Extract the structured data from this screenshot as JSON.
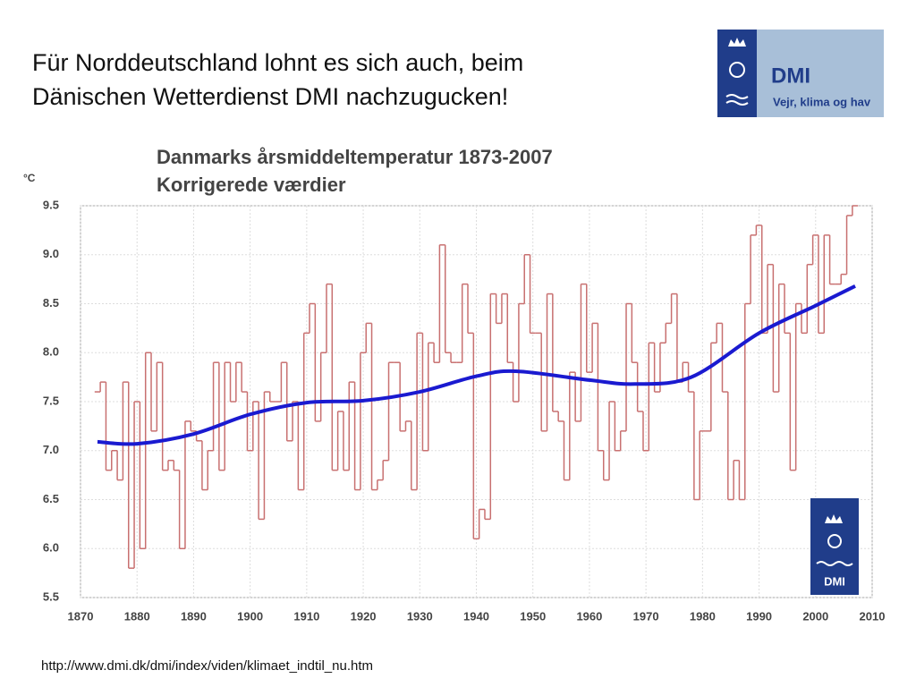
{
  "slide": {
    "title_lines": [
      "Für Norddeutschland lohnt es sich auch, beim",
      "Dänischen Wetterdienst DMI nachzugucken!"
    ],
    "url": "http://www.dmi.dk/dmi/index/viden/klimaet_indtil_nu.htm"
  },
  "logo": {
    "name": "DMI",
    "tagline": "Vejr, klima og hav",
    "small_name": "DMI"
  },
  "chart_data": {
    "type": "step",
    "title": "Danmarks årsmiddeltemperatur 1873-2007",
    "subtitle": "Korrigerede værdier",
    "y_label": "°C",
    "x": [
      1873,
      1874,
      1875,
      1876,
      1877,
      1878,
      1879,
      1880,
      1881,
      1882,
      1883,
      1884,
      1885,
      1886,
      1887,
      1888,
      1889,
      1890,
      1891,
      1892,
      1893,
      1894,
      1895,
      1896,
      1897,
      1898,
      1899,
      1900,
      1901,
      1902,
      1903,
      1904,
      1905,
      1906,
      1907,
      1908,
      1909,
      1910,
      1911,
      1912,
      1913,
      1914,
      1915,
      1916,
      1917,
      1918,
      1919,
      1920,
      1921,
      1922,
      1923,
      1924,
      1925,
      1926,
      1927,
      1928,
      1929,
      1930,
      1931,
      1932,
      1933,
      1934,
      1935,
      1936,
      1937,
      1938,
      1939,
      1940,
      1941,
      1942,
      1943,
      1944,
      1945,
      1946,
      1947,
      1948,
      1949,
      1950,
      1951,
      1952,
      1953,
      1954,
      1955,
      1956,
      1957,
      1958,
      1959,
      1960,
      1961,
      1962,
      1963,
      1964,
      1965,
      1966,
      1967,
      1968,
      1969,
      1970,
      1971,
      1972,
      1973,
      1974,
      1975,
      1976,
      1977,
      1978,
      1979,
      1980,
      1981,
      1982,
      1983,
      1984,
      1985,
      1986,
      1987,
      1988,
      1989,
      1990,
      1991,
      1992,
      1993,
      1994,
      1995,
      1996,
      1997,
      1998,
      1999,
      2000,
      2001,
      2002,
      2003,
      2004,
      2005,
      2006,
      2007
    ],
    "series": [
      {
        "color": "#c87070",
        "values": [
          7.6,
          7.7,
          6.8,
          7.0,
          6.7,
          7.7,
          5.8,
          7.5,
          6.0,
          8.0,
          7.2,
          7.9,
          6.8,
          6.9,
          6.8,
          6.0,
          7.3,
          7.2,
          7.1,
          6.6,
          7.0,
          7.9,
          6.8,
          7.9,
          7.5,
          7.9,
          7.6,
          7.0,
          7.5,
          6.3,
          7.6,
          7.5,
          7.5,
          7.9,
          7.1,
          7.5,
          6.6,
          8.2,
          8.5,
          7.3,
          8.0,
          8.7,
          6.8,
          7.4,
          6.8,
          7.7,
          6.6,
          8.0,
          8.3,
          6.6,
          6.7,
          6.9,
          7.9,
          7.9,
          7.2,
          7.3,
          6.6,
          8.2,
          7.0,
          8.1,
          7.9,
          9.1,
          8.0,
          7.9,
          7.9,
          8.7,
          8.2,
          6.1,
          6.4,
          6.3,
          8.6,
          8.3,
          8.6,
          7.9,
          7.5,
          8.5,
          9.0,
          8.2,
          8.2,
          7.2,
          8.6,
          7.4,
          7.3,
          6.7,
          7.8,
          7.3,
          8.7,
          7.8,
          8.3,
          7.0,
          6.7,
          7.5,
          7.0,
          7.2,
          8.5,
          7.9,
          7.4,
          7.0,
          8.1,
          7.6,
          8.1,
          8.3,
          8.6,
          7.7,
          7.9,
          7.6,
          6.5,
          7.2,
          7.2,
          8.1,
          8.3,
          7.6,
          6.5,
          6.9,
          6.5,
          8.5,
          9.2,
          9.3,
          8.2,
          8.9,
          7.6,
          8.7,
          8.2,
          6.8,
          8.5,
          8.2,
          8.9,
          9.2,
          8.2,
          9.2,
          8.7,
          8.7,
          8.8,
          9.4,
          9.5
        ]
      },
      {
        "type": "line",
        "color": "#1a1ad0",
        "x": [
          1873,
          1880,
          1890,
          1900,
          1910,
          1920,
          1930,
          1940,
          1947,
          1960,
          1968,
          1978,
          1990,
          2000,
          2007
        ],
        "values": [
          7.09,
          7.07,
          7.17,
          7.37,
          7.49,
          7.51,
          7.6,
          7.76,
          7.81,
          7.72,
          7.68,
          7.75,
          8.2,
          8.48,
          8.68
        ]
      }
    ],
    "xlim": [
      1870,
      2010
    ],
    "xticks": [
      1870,
      1880,
      1890,
      1900,
      1910,
      1920,
      1930,
      1940,
      1950,
      1960,
      1970,
      1980,
      1990,
      2000,
      2010
    ],
    "ylim": [
      5.5,
      9.5
    ],
    "yticks": [
      5.5,
      {
        "value": 6,
        "label": "6.0"
      },
      6.5,
      {
        "value": 7,
        "label": "7.0"
      },
      7.5,
      {
        "value": 8,
        "label": "8.0"
      },
      8.5,
      {
        "value": 9,
        "label": "9.0"
      },
      9.5
    ],
    "grid": true
  }
}
